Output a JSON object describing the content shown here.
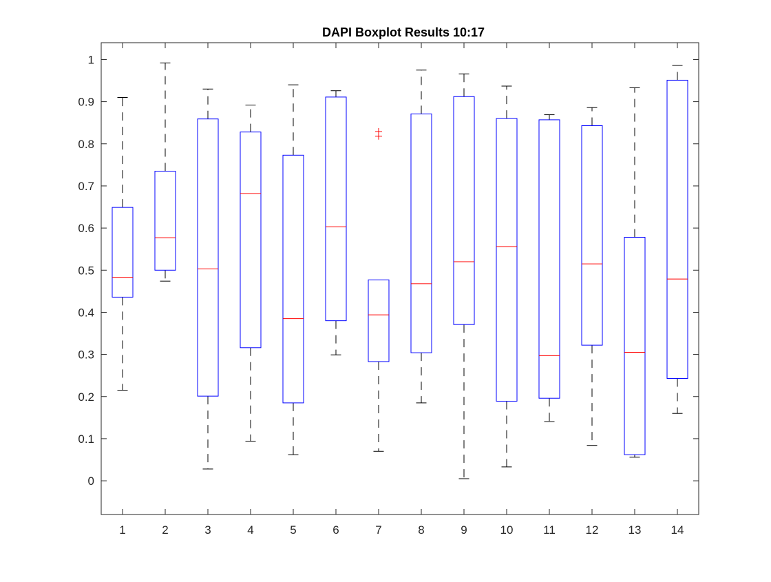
{
  "chart_data": {
    "type": "boxplot",
    "title": "DAPI Boxplot Results 10:17",
    "xlabel": "",
    "ylabel": "",
    "categories": [
      "1",
      "2",
      "3",
      "4",
      "5",
      "6",
      "7",
      "8",
      "9",
      "10",
      "11",
      "12",
      "13",
      "14"
    ],
    "ylim": [
      -0.08,
      1.04
    ],
    "yticks": [
      0,
      0.1,
      0.2,
      0.3,
      0.4,
      0.5,
      0.6,
      0.7,
      0.8,
      0.9,
      1
    ],
    "ytick_labels": [
      "0",
      "0.1",
      "0.2",
      "0.3",
      "0.4",
      "0.5",
      "0.6",
      "0.7",
      "0.8",
      "0.9",
      "1"
    ],
    "grid": false,
    "box_color": "#0000ff",
    "median_color": "#ff0000",
    "whisker_color": "#000000",
    "outlier_color": "#ff0000",
    "boxes": [
      {
        "label": "1",
        "min": 0.215,
        "q1": 0.436,
        "median": 0.483,
        "q3": 0.649,
        "max": 0.91,
        "outliers": []
      },
      {
        "label": "2",
        "min": 0.474,
        "q1": 0.5,
        "median": 0.577,
        "q3": 0.735,
        "max": 0.992,
        "outliers": []
      },
      {
        "label": "3",
        "min": 0.028,
        "q1": 0.201,
        "median": 0.503,
        "q3": 0.859,
        "max": 0.93,
        "outliers": []
      },
      {
        "label": "4",
        "min": 0.094,
        "q1": 0.316,
        "median": 0.682,
        "q3": 0.828,
        "max": 0.892,
        "outliers": []
      },
      {
        "label": "5",
        "min": 0.062,
        "q1": 0.185,
        "median": 0.385,
        "q3": 0.773,
        "max": 0.94,
        "outliers": []
      },
      {
        "label": "6",
        "min": 0.299,
        "q1": 0.38,
        "median": 0.603,
        "q3": 0.911,
        "max": 0.926,
        "outliers": []
      },
      {
        "label": "7",
        "min": 0.07,
        "q1": 0.283,
        "median": 0.394,
        "q3": 0.477,
        "max": 0.477,
        "outliers": [
          0.818,
          0.829
        ]
      },
      {
        "label": "8",
        "min": 0.185,
        "q1": 0.304,
        "median": 0.468,
        "q3": 0.871,
        "max": 0.975,
        "outliers": []
      },
      {
        "label": "9",
        "min": 0.005,
        "q1": 0.371,
        "median": 0.52,
        "q3": 0.912,
        "max": 0.966,
        "outliers": []
      },
      {
        "label": "10",
        "min": 0.033,
        "q1": 0.189,
        "median": 0.556,
        "q3": 0.86,
        "max": 0.937,
        "outliers": []
      },
      {
        "label": "11",
        "min": 0.14,
        "q1": 0.196,
        "median": 0.297,
        "q3": 0.857,
        "max": 0.869,
        "outliers": []
      },
      {
        "label": "12",
        "min": 0.084,
        "q1": 0.322,
        "median": 0.515,
        "q3": 0.843,
        "max": 0.886,
        "outliers": []
      },
      {
        "label": "13",
        "min": 0.056,
        "q1": 0.062,
        "median": 0.305,
        "q3": 0.578,
        "max": 0.933,
        "outliers": []
      },
      {
        "label": "14",
        "min": 0.16,
        "q1": 0.243,
        "median": 0.479,
        "q3": 0.951,
        "max": 0.986,
        "outliers": []
      }
    ]
  }
}
